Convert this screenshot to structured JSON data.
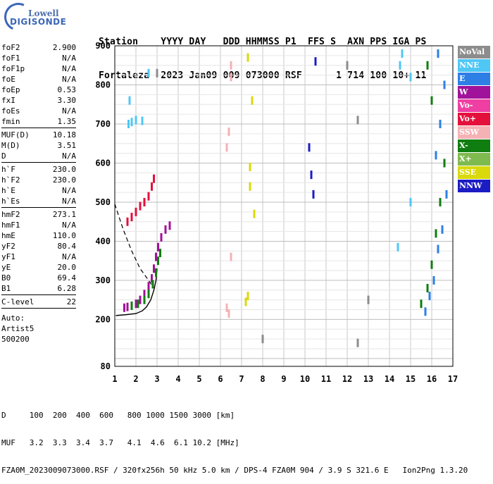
{
  "logo": {
    "line1": "Lowell",
    "line2": "DIGISONDE"
  },
  "header": {
    "line1": "Station    YYYY DAY   DDD HHMMSS P1  FFS S  AXN PPS IGA PS",
    "line2": "Fortaleza  2023 Jan09 009 073000 RSF      1 714 100 10+ 11"
  },
  "params_groups": [
    [
      [
        "foF2",
        "2.900"
      ],
      [
        "foF1",
        "N/A"
      ],
      [
        "foF1p",
        "N/A"
      ],
      [
        "foE",
        "N/A"
      ],
      [
        "foEp",
        "0.53"
      ],
      [
        "fxI",
        "3.30"
      ],
      [
        "foEs",
        "N/A"
      ],
      [
        "fmin",
        "1.35"
      ]
    ],
    [
      [
        "MUF(D)",
        "10.18"
      ],
      [
        "M(D)",
        "3.51"
      ],
      [
        "D",
        "N/A"
      ]
    ],
    [
      [
        "h`F",
        "230.0"
      ],
      [
        "h`F2",
        "230.0"
      ],
      [
        "h`E",
        "N/A"
      ],
      [
        "h`Es",
        "N/A"
      ]
    ],
    [
      [
        "hmF2",
        "273.1"
      ],
      [
        "hmF1",
        "N/A"
      ],
      [
        "hmE",
        "110.0"
      ],
      [
        "yF2",
        "80.4"
      ],
      [
        "yF1",
        "N/A"
      ],
      [
        "yE",
        "20.0"
      ],
      [
        "B0",
        "69.4"
      ],
      [
        "B1",
        "6.28"
      ]
    ],
    [
      [
        "C-level",
        "22"
      ]
    ]
  ],
  "auto": [
    "Auto:",
    "Artist5",
    "500200"
  ],
  "legend": [
    {
      "label": "NoVal",
      "color": "#8c8c8c"
    },
    {
      "label": "NNE",
      "color": "#4fc7f5"
    },
    {
      "label": "E",
      "color": "#2d7fe6"
    },
    {
      "label": "W",
      "color": "#a0129a"
    },
    {
      "label": "Vo-",
      "color": "#ef3fa2"
    },
    {
      "label": "Vo+",
      "color": "#e4103c"
    },
    {
      "label": "SSW",
      "color": "#f4b2b5"
    },
    {
      "label": "X-",
      "color": "#0f7d0f"
    },
    {
      "label": "X+",
      "color": "#7fba4f"
    },
    {
      "label": "SSE",
      "color": "#d9d90c"
    },
    {
      "label": "NNW",
      "color": "#1c1cc4"
    }
  ],
  "footer": {
    "line1": "D     100  200  400  600   800 1000 1500 3000 [km]",
    "line2": "MUF   3.2  3.3  3.4  3.7   4.1  4.6  6.1 10.2 [MHz]",
    "line3": "FZA0M_2023009073000.RSF / 320fx256h 50 kHz 5.0 km / DPS-4 FZA0M 904 / 3.9 S 321.6 E   Ion2Png 1.3.20"
  },
  "chart_data": {
    "type": "scatter",
    "xlim": [
      1,
      17
    ],
    "ylim": [
      80,
      900
    ],
    "x_ticks": [
      1,
      2,
      3,
      4,
      5,
      6,
      7,
      8,
      9,
      10,
      11,
      12,
      13,
      14,
      15,
      16,
      17
    ],
    "y_ticks": [
      80,
      200,
      300,
      400,
      500,
      600,
      700,
      800,
      900
    ],
    "grid": true,
    "profile_curve": [
      [
        1.05,
        210
      ],
      [
        1.5,
        212
      ],
      [
        2.0,
        215
      ],
      [
        2.3,
        222
      ],
      [
        2.5,
        232
      ],
      [
        2.7,
        250
      ],
      [
        2.85,
        275
      ],
      [
        2.95,
        300
      ],
      [
        3.0,
        330
      ]
    ],
    "dashed_curve": [
      [
        1.0,
        495
      ],
      [
        1.4,
        430
      ],
      [
        1.8,
        375
      ],
      [
        2.2,
        330
      ],
      [
        2.6,
        300
      ],
      [
        2.85,
        280
      ]
    ],
    "series": [
      {
        "name": "O-trace F2",
        "color": "#a0129a",
        "points": [
          [
            1.45,
            230
          ],
          [
            1.6,
            232
          ],
          [
            1.8,
            235
          ],
          [
            2.0,
            240
          ],
          [
            2.2,
            250
          ],
          [
            2.4,
            265
          ],
          [
            2.6,
            285
          ],
          [
            2.75,
            305
          ],
          [
            2.85,
            330
          ],
          [
            2.95,
            360
          ],
          [
            3.05,
            385
          ],
          [
            3.2,
            410
          ],
          [
            3.4,
            430
          ],
          [
            3.6,
            440
          ]
        ]
      },
      {
        "name": "X-trace F2",
        "color": "#0f7d0f",
        "points": [
          [
            1.8,
            235
          ],
          [
            2.1,
            240
          ],
          [
            2.4,
            250
          ],
          [
            2.6,
            265
          ],
          [
            2.8,
            290
          ],
          [
            2.95,
            320
          ],
          [
            3.05,
            350
          ],
          [
            3.15,
            370
          ]
        ]
      },
      {
        "name": "Echo 2F",
        "color": "#e4103c",
        "points": [
          [
            1.6,
            450
          ],
          [
            1.8,
            462
          ],
          [
            2.0,
            475
          ],
          [
            2.2,
            490
          ],
          [
            2.4,
            500
          ],
          [
            2.6,
            515
          ],
          [
            2.75,
            540
          ],
          [
            2.85,
            560
          ]
        ]
      },
      {
        "name": "Echo 3F",
        "color": "#4fc7f5",
        "points": [
          [
            1.65,
            700
          ],
          [
            1.8,
            705
          ],
          [
            2.0,
            710
          ],
          [
            2.3,
            708
          ],
          [
            1.7,
            760
          ],
          [
            2.6,
            830
          ]
        ]
      },
      {
        "name": "Band 6.5",
        "color": "#f4b2b5",
        "points": [
          [
            6.3,
            230
          ],
          [
            6.4,
            215
          ],
          [
            6.5,
            360
          ],
          [
            6.5,
            850
          ],
          [
            6.5,
            820
          ],
          [
            6.3,
            640
          ],
          [
            6.4,
            680
          ]
        ]
      },
      {
        "name": "Band 7.2",
        "color": "#d9d90c",
        "points": [
          [
            7.2,
            245
          ],
          [
            7.3,
            260
          ],
          [
            7.4,
            540
          ],
          [
            7.4,
            590
          ],
          [
            7.3,
            870
          ],
          [
            7.5,
            760
          ],
          [
            7.6,
            470
          ]
        ]
      },
      {
        "name": "Band 10",
        "color": "#1c1cc4",
        "points": [
          [
            10.2,
            640
          ],
          [
            10.3,
            570
          ],
          [
            10.4,
            520
          ],
          [
            10.5,
            860
          ]
        ]
      },
      {
        "name": "Band 15-17",
        "color": "#2d7fe6",
        "points": [
          [
            15.7,
            220
          ],
          [
            15.9,
            260
          ],
          [
            16.1,
            300
          ],
          [
            16.3,
            380
          ],
          [
            16.5,
            430
          ],
          [
            16.7,
            520
          ],
          [
            16.2,
            620
          ],
          [
            16.4,
            700
          ],
          [
            16.6,
            800
          ],
          [
            16.3,
            880
          ]
        ]
      },
      {
        "name": "Band 15-17 X",
        "color": "#0f7d0f",
        "points": [
          [
            15.5,
            240
          ],
          [
            15.8,
            280
          ],
          [
            16.0,
            340
          ],
          [
            16.2,
            420
          ],
          [
            16.4,
            500
          ],
          [
            16.6,
            600
          ],
          [
            16.0,
            760
          ],
          [
            15.8,
            850
          ]
        ]
      },
      {
        "name": "Band 14",
        "color": "#4fc7f5",
        "points": [
          [
            14.4,
            385
          ],
          [
            14.6,
            880
          ],
          [
            14.5,
            850
          ],
          [
            15.0,
            820
          ],
          [
            15.0,
            500
          ]
        ]
      },
      {
        "name": "Stray",
        "color": "#8c8c8c",
        "points": [
          [
            12.0,
            850
          ],
          [
            12.5,
            710
          ],
          [
            13.0,
            250
          ],
          [
            12.5,
            140
          ],
          [
            8.0,
            150
          ],
          [
            3.0,
            830
          ]
        ]
      }
    ]
  }
}
